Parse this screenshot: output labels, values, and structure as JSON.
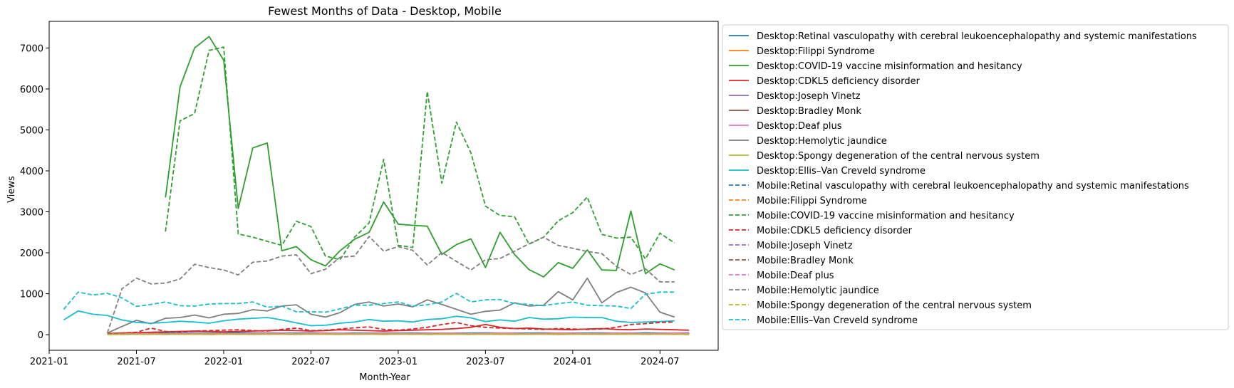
{
  "chart_data": {
    "type": "line",
    "title": "Fewest Months of Data - Desktop, Mobile",
    "xlabel": "Month-Year",
    "ylabel": "Views",
    "xlim": [
      "2021-01",
      "2024-11"
    ],
    "ylim": [
      -380,
      7650
    ],
    "x_ticks": [
      "2021-01",
      "2021-07",
      "2022-01",
      "2022-07",
      "2023-01",
      "2023-07",
      "2024-01",
      "2024-07"
    ],
    "y_ticks": [
      0,
      1000,
      2000,
      3000,
      4000,
      5000,
      6000,
      7000
    ],
    "legend_position": "outside-right",
    "grid": false,
    "series": [
      {
        "name": "Desktop:Retinal vasculopathy with cerebral leukoencephalopathy and systemic manifestations",
        "color": "#1f77b4",
        "style": "solid",
        "start": "2021-05",
        "values": [
          20,
          25,
          30,
          35,
          40,
          40,
          45,
          40,
          45,
          50,
          45,
          45,
          40,
          40,
          45,
          40,
          35,
          40,
          40,
          45,
          40,
          40,
          40,
          35,
          40,
          40,
          45,
          40,
          40,
          40,
          45,
          40,
          40,
          40,
          45,
          40,
          40,
          45,
          40,
          40,
          45
        ]
      },
      {
        "name": "Desktop:Filippi Syndrome",
        "color": "#ff7f0e",
        "style": "solid",
        "start": "2021-05",
        "values": [
          10,
          15,
          15,
          20,
          20,
          25,
          20,
          20,
          25,
          20,
          20,
          25,
          20,
          20,
          25,
          25,
          20,
          20,
          25,
          20,
          20,
          25,
          20,
          20,
          20,
          25,
          20,
          20,
          25,
          20,
          20,
          25,
          20,
          20,
          25,
          20,
          20,
          25,
          20,
          20,
          25
        ]
      },
      {
        "name": "Desktop:COVID-19 vaccine misinformation and hesitancy",
        "color": "#2ca02c",
        "style": "solid",
        "start": "2021-09",
        "values": [
          3350,
          6050,
          7000,
          7280,
          6700,
          3080,
          4560,
          4680,
          2050,
          2150,
          1830,
          1680,
          2050,
          2330,
          2500,
          3240,
          2700,
          2670,
          2650,
          1960,
          2200,
          2340,
          1640,
          2500,
          1960,
          1590,
          1410,
          1760,
          1620,
          2070,
          1580,
          1570,
          3020,
          1490,
          1730,
          1580
        ]
      },
      {
        "name": "Desktop:CDKL5 deficiency disorder",
        "color": "#d62728",
        "style": "solid",
        "start": "2021-05",
        "values": [
          30,
          40,
          50,
          60,
          70,
          80,
          90,
          80,
          70,
          80,
          90,
          100,
          110,
          100,
          90,
          100,
          120,
          110,
          100,
          90,
          100,
          110,
          120,
          130,
          150,
          180,
          250,
          180,
          150,
          160,
          140,
          130,
          120,
          140,
          150,
          130,
          120,
          140,
          130,
          120,
          110
        ]
      },
      {
        "name": "Desktop:Joseph Vinetz",
        "color": "#9467bd",
        "style": "solid",
        "start": "2021-05",
        "values": [
          15,
          20,
          25,
          20,
          25,
          30,
          25,
          30,
          25,
          20,
          25,
          30,
          25,
          25,
          30,
          25,
          25,
          30,
          25,
          25,
          30,
          25,
          25,
          30,
          25,
          25,
          30,
          25,
          25,
          30,
          25,
          25,
          30,
          25,
          25,
          30,
          25,
          25,
          30,
          25,
          25
        ]
      },
      {
        "name": "Desktop:Bradley Monk",
        "color": "#8c564b",
        "style": "solid",
        "start": "2021-05",
        "values": [
          10,
          10,
          15,
          15,
          10,
          15,
          15,
          10,
          15,
          15,
          10,
          15,
          15,
          10,
          15,
          15,
          10,
          15,
          15,
          10,
          15,
          15,
          10,
          15,
          15,
          10,
          15,
          15,
          10,
          15,
          15,
          10,
          15,
          15,
          10,
          15,
          15,
          10,
          15,
          15,
          10
        ]
      },
      {
        "name": "Desktop:Deaf plus",
        "color": "#e377c2",
        "style": "solid",
        "start": "2021-05",
        "values": [
          15,
          20,
          25,
          30,
          25,
          30,
          35,
          30,
          35,
          30,
          35,
          40,
          35,
          30,
          35,
          40,
          35,
          30,
          35,
          40,
          35,
          30,
          35,
          40,
          35,
          30,
          35,
          40,
          35,
          30,
          35,
          40,
          35,
          30,
          35,
          40,
          35,
          30,
          35,
          40,
          35
        ]
      },
      {
        "name": "Desktop:Hemolytic jaundice",
        "color": "#7f7f7f",
        "style": "solid",
        "start": "2021-05",
        "values": [
          40,
          200,
          350,
          270,
          400,
          420,
          480,
          410,
          500,
          520,
          610,
          580,
          700,
          730,
          500,
          430,
          540,
          740,
          800,
          700,
          750,
          680,
          850,
          740,
          620,
          500,
          570,
          600,
          780,
          700,
          720,
          1050,
          850,
          1380,
          780,
          1030,
          1160,
          1020,
          550,
          430
        ]
      },
      {
        "name": "Desktop:Spongy degeneration of the central nervous system",
        "color": "#bcbd22",
        "style": "solid",
        "start": "2021-05",
        "values": [
          5,
          8,
          10,
          10,
          12,
          10,
          12,
          15,
          12,
          10,
          12,
          15,
          12,
          10,
          12,
          15,
          12,
          10,
          12,
          15,
          12,
          10,
          12,
          15,
          12,
          10,
          12,
          15,
          12,
          10,
          12,
          15,
          12,
          10,
          12,
          15,
          12,
          10,
          12,
          15,
          12
        ]
      },
      {
        "name": "Desktop:Ellis–Van Creveld syndrome",
        "color": "#17becf",
        "style": "solid",
        "start": "2021-02",
        "values": [
          360,
          580,
          500,
          470,
          360,
          300,
          280,
          300,
          330,
          310,
          280,
          340,
          380,
          400,
          420,
          360,
          290,
          220,
          230,
          280,
          310,
          370,
          330,
          340,
          310,
          370,
          390,
          450,
          410,
          320,
          360,
          330,
          420,
          380,
          390,
          430,
          420,
          420,
          330,
          300,
          310,
          320,
          340
        ]
      },
      {
        "name": "Mobile:Retinal vasculopathy with cerebral leukoencephalopathy and systemic manifestations",
        "color": "#1f77b4",
        "style": "dashed",
        "start": "2021-05",
        "values": [
          15,
          20,
          25,
          25,
          30,
          30,
          35,
          30,
          35,
          35,
          30,
          35,
          30,
          30,
          35,
          30,
          30,
          35,
          30,
          30,
          35,
          30,
          30,
          35,
          30,
          30,
          35,
          30,
          30,
          35,
          30,
          30,
          35,
          30,
          30,
          35,
          30,
          30,
          35,
          30,
          30
        ]
      },
      {
        "name": "Mobile:Filippi Syndrome",
        "color": "#ff7f0e",
        "style": "dashed",
        "start": "2021-05",
        "values": [
          10,
          12,
          15,
          15,
          18,
          15,
          18,
          20,
          18,
          15,
          18,
          20,
          18,
          15,
          18,
          20,
          18,
          15,
          18,
          20,
          18,
          15,
          18,
          20,
          18,
          15,
          18,
          20,
          18,
          15,
          18,
          20,
          18,
          15,
          18,
          20,
          18,
          15,
          18,
          20,
          18
        ]
      },
      {
        "name": "Mobile:COVID-19 vaccine misinformation and hesitancy",
        "color": "#2ca02c",
        "style": "dashed",
        "start": "2021-09",
        "values": [
          2520,
          5220,
          5400,
          6940,
          7020,
          2460,
          2380,
          2280,
          2180,
          2770,
          2640,
          1920,
          1830,
          2380,
          2730,
          4280,
          2180,
          2130,
          5940,
          3700,
          5190,
          4440,
          3140,
          2910,
          2880,
          2210,
          2380,
          2780,
          2980,
          3360,
          2450,
          2360,
          2380,
          1850,
          2480,
          2240
        ]
      },
      {
        "name": "Mobile:CDKL5 deficiency disorder",
        "color": "#d62728",
        "style": "dashed",
        "start": "2021-05",
        "values": [
          20,
          40,
          60,
          160,
          80,
          70,
          90,
          100,
          110,
          120,
          100,
          90,
          130,
          160,
          100,
          110,
          140,
          170,
          190,
          130,
          110,
          140,
          180,
          250,
          300,
          220,
          180,
          160,
          150,
          140,
          130,
          150,
          140,
          130,
          140,
          180,
          250,
          270,
          300,
          310
        ]
      },
      {
        "name": "Mobile:Joseph Vinetz",
        "color": "#9467bd",
        "style": "dashed",
        "start": "2021-05",
        "values": [
          10,
          15,
          20,
          20,
          25,
          20,
          25,
          30,
          25,
          20,
          25,
          30,
          25,
          20,
          25,
          30,
          25,
          20,
          25,
          30,
          25,
          20,
          25,
          30,
          25,
          20,
          25,
          30,
          25,
          20,
          25,
          30,
          25,
          20,
          25,
          30,
          25,
          20,
          25,
          30,
          25
        ]
      },
      {
        "name": "Mobile:Bradley Monk",
        "color": "#8c564b",
        "style": "dashed",
        "start": "2021-05",
        "values": [
          5,
          8,
          10,
          10,
          8,
          10,
          10,
          8,
          10,
          10,
          8,
          10,
          10,
          8,
          10,
          10,
          8,
          10,
          10,
          8,
          10,
          10,
          8,
          10,
          10,
          8,
          10,
          10,
          8,
          10,
          10,
          8,
          10,
          10,
          8,
          10,
          10,
          8,
          10,
          10,
          8
        ]
      },
      {
        "name": "Mobile:Deaf plus",
        "color": "#e377c2",
        "style": "dashed",
        "start": "2021-05",
        "values": [
          10,
          15,
          20,
          25,
          20,
          25,
          30,
          25,
          30,
          25,
          30,
          35,
          30,
          25,
          30,
          35,
          30,
          25,
          30,
          35,
          30,
          25,
          30,
          35,
          30,
          25,
          30,
          35,
          30,
          25,
          30,
          35,
          30,
          25,
          30,
          35,
          30,
          25,
          30,
          35,
          30
        ]
      },
      {
        "name": "Mobile:Hemolytic jaundice",
        "color": "#7f7f7f",
        "style": "dashed",
        "start": "2021-05",
        "values": [
          40,
          1120,
          1380,
          1240,
          1260,
          1360,
          1720,
          1640,
          1580,
          1460,
          1770,
          1800,
          1920,
          1950,
          1490,
          1600,
          1890,
          1920,
          2400,
          2040,
          2150,
          2060,
          1700,
          2010,
          1790,
          1580,
          1830,
          1860,
          2040,
          2220,
          2380,
          2180,
          2110,
          2030,
          1980,
          1670,
          1470,
          1610,
          1290,
          1290
        ]
      },
      {
        "name": "Mobile:Spongy degeneration of the central nervous system",
        "color": "#bcbd22",
        "style": "dashed",
        "start": "2021-05",
        "values": [
          5,
          6,
          8,
          8,
          10,
          8,
          10,
          12,
          10,
          8,
          10,
          12,
          10,
          8,
          10,
          12,
          10,
          8,
          10,
          12,
          10,
          8,
          10,
          12,
          10,
          8,
          10,
          12,
          10,
          8,
          10,
          12,
          10,
          8,
          10,
          12,
          10,
          8,
          10,
          12,
          10
        ]
      },
      {
        "name": "Mobile:Ellis–Van Creveld syndrome",
        "color": "#17becf",
        "style": "dashed",
        "start": "2021-02",
        "values": [
          620,
          1040,
          970,
          1010,
          900,
          690,
          740,
          800,
          710,
          700,
          750,
          760,
          760,
          800,
          670,
          700,
          560,
          560,
          550,
          630,
          720,
          720,
          760,
          800,
          700,
          730,
          800,
          1010,
          800,
          850,
          860,
          760,
          740,
          710,
          760,
          800,
          720,
          710,
          700,
          640,
          990,
          1040,
          1040
        ]
      }
    ]
  }
}
